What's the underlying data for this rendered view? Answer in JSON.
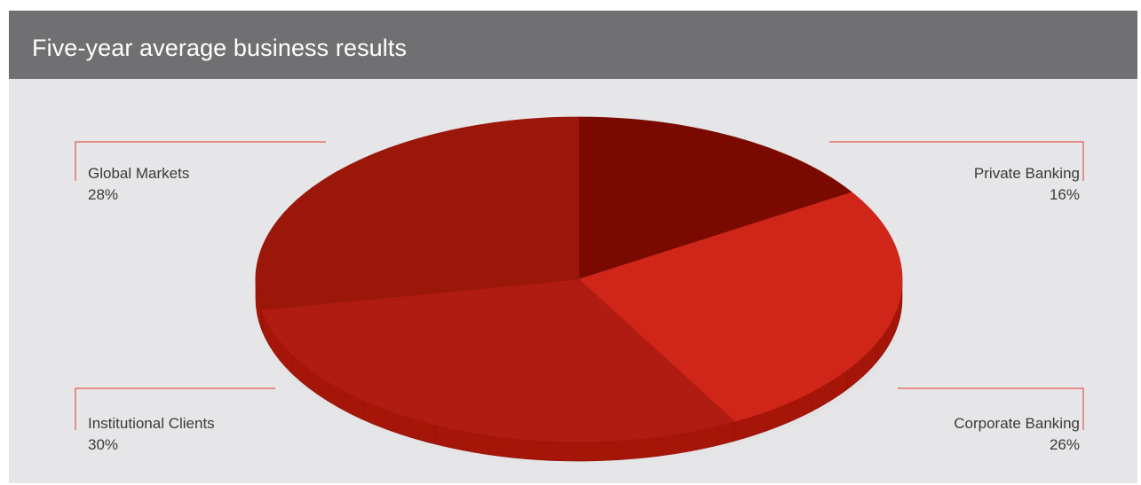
{
  "header": {
    "title": "Five-year average business results"
  },
  "chart_data": {
    "type": "pie",
    "title": "Five-year average business results",
    "slices": [
      {
        "label": "Private Banking",
        "value": 16,
        "value_text": "16%",
        "color": "#7a0a00"
      },
      {
        "label": "Corporate Banking",
        "value": 26,
        "value_text": "26%",
        "color": "#cf2619"
      },
      {
        "label": "Institutional Clients",
        "value": 30,
        "value_text": "30%",
        "color": "#b01c12"
      },
      {
        "label": "Global Markets",
        "value": 28,
        "value_text": "28%",
        "color": "#9a170a"
      }
    ],
    "leader_line_color": "#e23b2d",
    "side_color": "#a51608",
    "background": "#e6e6e8",
    "header_color": "#707073",
    "legend": "callouts at corners"
  }
}
